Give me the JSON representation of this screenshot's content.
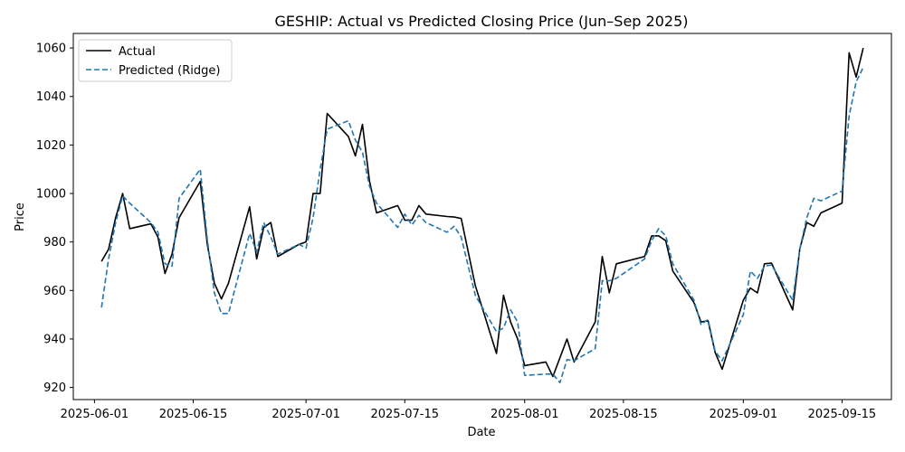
{
  "chart_data": {
    "type": "line",
    "title": "GESHIP: Actual vs Predicted Closing Price (Jun–Sep 2025)",
    "xlabel": "Date",
    "ylabel": "Price",
    "xlim": [
      "2025-05-29",
      "2025-09-22"
    ],
    "ylim": [
      915,
      1066
    ],
    "x_ticks": [
      "2025-06-01",
      "2025-06-15",
      "2025-07-01",
      "2025-07-15",
      "2025-08-01",
      "2025-08-15",
      "2025-09-01",
      "2025-09-15"
    ],
    "y_ticks": [
      920,
      940,
      960,
      980,
      1000,
      1020,
      1040,
      1060
    ],
    "grid": false,
    "legend_position": "top-left",
    "legend": [
      "Actual",
      "Predicted (Ridge)"
    ],
    "series": [
      {
        "name": "Actual",
        "color": "#000000",
        "style": "solid",
        "points": [
          [
            "2025-06-02",
            972
          ],
          [
            "2025-06-03",
            977
          ],
          [
            "2025-06-04",
            990
          ],
          [
            "2025-06-05",
            1000
          ],
          [
            "2025-06-06",
            985.5
          ],
          [
            "2025-06-09",
            987.5
          ],
          [
            "2025-06-10",
            982
          ],
          [
            "2025-06-11",
            967
          ],
          [
            "2025-06-12",
            975
          ],
          [
            "2025-06-13",
            990
          ],
          [
            "2025-06-16",
            1005
          ],
          [
            "2025-06-17",
            979
          ],
          [
            "2025-06-18",
            963
          ],
          [
            "2025-06-19",
            956.5
          ],
          [
            "2025-06-20",
            963
          ],
          [
            "2025-06-23",
            994.5
          ],
          [
            "2025-06-24",
            973
          ],
          [
            "2025-06-25",
            986
          ],
          [
            "2025-06-26",
            988
          ],
          [
            "2025-06-27",
            974
          ],
          [
            "2025-06-30",
            979
          ],
          [
            "2025-07-01",
            980
          ],
          [
            "2025-07-02",
            1000
          ],
          [
            "2025-07-03",
            1000
          ],
          [
            "2025-07-04",
            1033
          ],
          [
            "2025-07-07",
            1023.5
          ],
          [
            "2025-07-08",
            1015.5
          ],
          [
            "2025-07-09",
            1028.5
          ],
          [
            "2025-07-10",
            1005
          ],
          [
            "2025-07-11",
            992
          ],
          [
            "2025-07-14",
            995
          ],
          [
            "2025-07-15",
            989
          ],
          [
            "2025-07-16",
            989
          ],
          [
            "2025-07-17",
            995
          ],
          [
            "2025-07-18",
            991.5
          ],
          [
            "2025-07-21",
            990.5
          ],
          [
            "2025-07-22",
            990.3
          ],
          [
            "2025-07-23",
            989.7
          ],
          [
            "2025-07-25",
            962
          ],
          [
            "2025-07-28",
            934
          ],
          [
            "2025-07-29",
            958
          ],
          [
            "2025-07-30",
            947
          ],
          [
            "2025-07-31",
            940
          ],
          [
            "2025-08-01",
            929
          ],
          [
            "2025-08-04",
            930.5
          ],
          [
            "2025-08-05",
            924.5
          ],
          [
            "2025-08-07",
            940
          ],
          [
            "2025-08-08",
            930.5
          ],
          [
            "2025-08-11",
            947
          ],
          [
            "2025-08-12",
            974
          ],
          [
            "2025-08-13",
            959
          ],
          [
            "2025-08-14",
            971
          ],
          [
            "2025-08-18",
            974
          ],
          [
            "2025-08-19",
            982.5
          ],
          [
            "2025-08-20",
            982.5
          ],
          [
            "2025-08-21",
            980.5
          ],
          [
            "2025-08-22",
            968
          ],
          [
            "2025-08-25",
            955
          ],
          [
            "2025-08-26",
            947
          ],
          [
            "2025-08-27",
            947.5
          ],
          [
            "2025-08-28",
            934.5
          ],
          [
            "2025-08-29",
            927.5
          ],
          [
            "2025-09-01",
            956
          ],
          [
            "2025-09-02",
            961
          ],
          [
            "2025-09-03",
            959
          ],
          [
            "2025-09-04",
            971
          ],
          [
            "2025-09-05",
            971.3
          ],
          [
            "2025-09-08",
            952
          ],
          [
            "2025-09-09",
            977
          ],
          [
            "2025-09-10",
            988
          ],
          [
            "2025-09-11",
            986.5
          ],
          [
            "2025-09-12",
            992
          ],
          [
            "2025-09-15",
            996
          ],
          [
            "2025-09-16",
            1058
          ],
          [
            "2025-09-17",
            1048
          ],
          [
            "2025-09-18",
            1060
          ]
        ]
      },
      {
        "name": "Predicted (Ridge)",
        "color": "#1f77b4",
        "style": "dashed",
        "points": [
          [
            "2025-06-02",
            953
          ],
          [
            "2025-06-03",
            973
          ],
          [
            "2025-06-04",
            988
          ],
          [
            "2025-06-05",
            999
          ],
          [
            "2025-06-06",
            996
          ],
          [
            "2025-06-09",
            988
          ],
          [
            "2025-06-10",
            984
          ],
          [
            "2025-06-11",
            971
          ],
          [
            "2025-06-12",
            970
          ],
          [
            "2025-06-13",
            998
          ],
          [
            "2025-06-16",
            1010
          ],
          [
            "2025-06-17",
            981
          ],
          [
            "2025-06-18",
            959
          ],
          [
            "2025-06-19",
            950.5
          ],
          [
            "2025-06-20",
            950.5
          ],
          [
            "2025-06-23",
            983.5
          ],
          [
            "2025-06-24",
            976
          ],
          [
            "2025-06-25",
            988
          ],
          [
            "2025-06-26",
            982
          ],
          [
            "2025-06-27",
            975
          ],
          [
            "2025-06-30",
            979
          ],
          [
            "2025-07-01",
            977.5
          ],
          [
            "2025-07-02",
            990
          ],
          [
            "2025-07-03",
            1010
          ],
          [
            "2025-07-04",
            1026.5
          ],
          [
            "2025-07-07",
            1030
          ],
          [
            "2025-07-08",
            1022
          ],
          [
            "2025-07-09",
            1017
          ],
          [
            "2025-07-10",
            1003
          ],
          [
            "2025-07-11",
            996
          ],
          [
            "2025-07-14",
            986
          ],
          [
            "2025-07-15",
            991.5
          ],
          [
            "2025-07-16",
            987
          ],
          [
            "2025-07-17",
            991
          ],
          [
            "2025-07-18",
            988
          ],
          [
            "2025-07-21",
            984
          ],
          [
            "2025-07-22",
            986.5
          ],
          [
            "2025-07-23",
            982
          ],
          [
            "2025-07-25",
            958
          ],
          [
            "2025-07-28",
            943
          ],
          [
            "2025-07-29",
            944.5
          ],
          [
            "2025-07-30",
            952
          ],
          [
            "2025-07-31",
            947
          ],
          [
            "2025-08-01",
            925
          ],
          [
            "2025-08-04",
            925.5
          ],
          [
            "2025-08-05",
            925.5
          ],
          [
            "2025-08-06",
            922
          ],
          [
            "2025-08-07",
            931.5
          ],
          [
            "2025-08-08",
            931
          ],
          [
            "2025-08-11",
            936
          ],
          [
            "2025-08-12",
            964
          ],
          [
            "2025-08-13",
            964
          ],
          [
            "2025-08-14",
            965
          ],
          [
            "2025-08-18",
            973
          ],
          [
            "2025-08-19",
            980.5
          ],
          [
            "2025-08-20",
            985.5
          ],
          [
            "2025-08-21",
            982.5
          ],
          [
            "2025-08-22",
            971
          ],
          [
            "2025-08-25",
            956
          ],
          [
            "2025-08-26",
            946
          ],
          [
            "2025-08-27",
            948
          ],
          [
            "2025-08-28",
            935
          ],
          [
            "2025-08-29",
            931
          ],
          [
            "2025-09-01",
            950
          ],
          [
            "2025-09-02",
            968
          ],
          [
            "2025-09-03",
            965
          ],
          [
            "2025-09-04",
            970
          ],
          [
            "2025-09-05",
            970.5
          ],
          [
            "2025-09-08",
            956
          ],
          [
            "2025-09-09",
            977
          ],
          [
            "2025-09-10",
            990
          ],
          [
            "2025-09-11",
            998
          ],
          [
            "2025-09-12",
            997
          ],
          [
            "2025-09-15",
            1001
          ],
          [
            "2025-09-16",
            1032
          ],
          [
            "2025-09-17",
            1046
          ],
          [
            "2025-09-18",
            1052
          ]
        ]
      }
    ]
  }
}
